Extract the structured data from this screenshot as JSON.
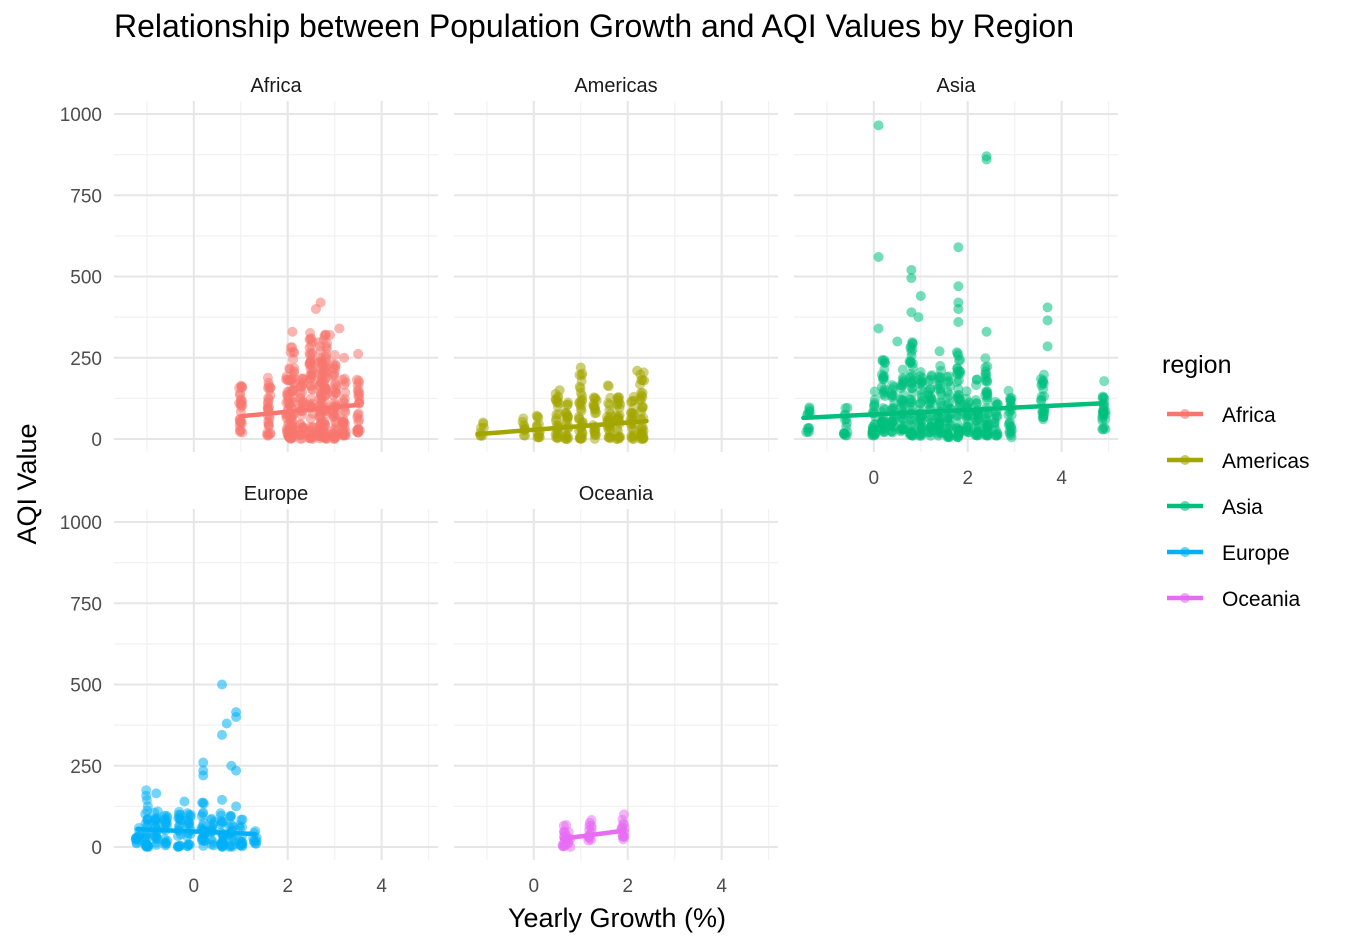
{
  "chart_data": {
    "type": "scatter",
    "title": "Relationship between Population Growth and AQI Values by Region",
    "xlabel": "Yearly Growth (%)",
    "ylabel": "AQI Value",
    "xlim": [
      -1.7,
      5.2
    ],
    "ylim": [
      -40,
      1040
    ],
    "x_ticks": [
      0,
      2,
      4
    ],
    "y_ticks": [
      0,
      250,
      500,
      750,
      1000
    ],
    "grid": true,
    "legend": {
      "title": "region",
      "position": "right"
    },
    "facets": [
      "Africa",
      "Americas",
      "Asia",
      "Europe",
      "Oceania"
    ],
    "series": [
      {
        "name": "Africa",
        "color": "#F8766D",
        "trend": [
          [
            1.0,
            70
          ],
          [
            3.5,
            105
          ]
        ],
        "columns": [
          {
            "x": 1.0,
            "min": 20,
            "max": 180
          },
          {
            "x": 1.6,
            "min": 10,
            "max": 190
          },
          {
            "x": 2.0,
            "min": 5,
            "max": 220
          },
          {
            "x": 2.1,
            "min": 0,
            "max": 285
          },
          {
            "x": 2.3,
            "min": 0,
            "max": 200
          },
          {
            "x": 2.5,
            "min": 0,
            "max": 330
          },
          {
            "x": 2.7,
            "min": 0,
            "max": 300
          },
          {
            "x": 2.8,
            "min": 0,
            "max": 330
          },
          {
            "x": 3.0,
            "min": 0,
            "max": 260
          },
          {
            "x": 3.2,
            "min": 10,
            "max": 200
          },
          {
            "x": 3.5,
            "min": 20,
            "max": 190
          }
        ],
        "outliers": [
          [
            2.7,
            420
          ],
          [
            2.6,
            400
          ],
          [
            3.1,
            340
          ],
          [
            2.1,
            330
          ],
          [
            2.9,
            320
          ],
          [
            2.5,
            310
          ],
          [
            3.5,
            262
          ],
          [
            3.2,
            250
          ]
        ]
      },
      {
        "name": "Americas",
        "color": "#A3A500",
        "trend": [
          [
            -1.2,
            15
          ],
          [
            2.4,
            55
          ]
        ],
        "columns": [
          {
            "x": -1.1,
            "min": 10,
            "max": 55
          },
          {
            "x": -0.2,
            "min": 10,
            "max": 65
          },
          {
            "x": 0.1,
            "min": 5,
            "max": 80
          },
          {
            "x": 0.5,
            "min": 0,
            "max": 150
          },
          {
            "x": 0.7,
            "min": 0,
            "max": 130
          },
          {
            "x": 1.0,
            "min": 0,
            "max": 215
          },
          {
            "x": 1.3,
            "min": 0,
            "max": 130
          },
          {
            "x": 1.6,
            "min": 0,
            "max": 170
          },
          {
            "x": 1.8,
            "min": 0,
            "max": 150
          },
          {
            "x": 2.1,
            "min": 0,
            "max": 140
          },
          {
            "x": 2.3,
            "min": 0,
            "max": 205
          }
        ],
        "outliers": [
          [
            1.0,
            220
          ],
          [
            2.2,
            210
          ],
          [
            2.35,
            180
          ],
          [
            0.55,
            150
          ]
        ]
      },
      {
        "name": "Asia",
        "color": "#00BF7D",
        "trend": [
          [
            -1.5,
            65
          ],
          [
            4.9,
            110
          ]
        ],
        "columns": [
          {
            "x": -1.4,
            "min": 20,
            "max": 100
          },
          {
            "x": -0.6,
            "min": 10,
            "max": 100
          },
          {
            "x": 0.0,
            "min": 10,
            "max": 170
          },
          {
            "x": 0.2,
            "min": 20,
            "max": 250
          },
          {
            "x": 0.4,
            "min": 20,
            "max": 180
          },
          {
            "x": 0.6,
            "min": 20,
            "max": 220
          },
          {
            "x": 0.8,
            "min": 10,
            "max": 300
          },
          {
            "x": 1.0,
            "min": 10,
            "max": 230
          },
          {
            "x": 1.2,
            "min": 10,
            "max": 200
          },
          {
            "x": 1.4,
            "min": 10,
            "max": 230
          },
          {
            "x": 1.6,
            "min": 5,
            "max": 200
          },
          {
            "x": 1.8,
            "min": 5,
            "max": 280
          },
          {
            "x": 2.0,
            "min": 20,
            "max": 150
          },
          {
            "x": 2.2,
            "min": 10,
            "max": 190
          },
          {
            "x": 2.4,
            "min": 10,
            "max": 250
          },
          {
            "x": 2.6,
            "min": 10,
            "max": 120
          },
          {
            "x": 2.9,
            "min": 5,
            "max": 150
          },
          {
            "x": 3.6,
            "min": 60,
            "max": 200
          },
          {
            "x": 4.9,
            "min": 30,
            "max": 180
          }
        ],
        "outliers": [
          [
            0.1,
            965
          ],
          [
            2.4,
            870
          ],
          [
            2.4,
            860
          ],
          [
            1.8,
            590
          ],
          [
            0.1,
            560
          ],
          [
            0.8,
            520
          ],
          [
            0.8,
            495
          ],
          [
            1.8,
            470
          ],
          [
            1.0,
            440
          ],
          [
            1.8,
            420
          ],
          [
            3.7,
            405
          ],
          [
            0.8,
            390
          ],
          [
            1.8,
            400
          ],
          [
            0.95,
            375
          ],
          [
            3.7,
            365
          ],
          [
            1.8,
            360
          ],
          [
            0.1,
            340
          ],
          [
            2.4,
            330
          ],
          [
            0.5,
            300
          ],
          [
            1.4,
            270
          ],
          [
            3.7,
            285
          ]
        ]
      },
      {
        "name": "Europe",
        "color": "#00B0F6",
        "trend": [
          [
            -1.2,
            55
          ],
          [
            1.3,
            40
          ]
        ],
        "columns": [
          {
            "x": -1.2,
            "min": 10,
            "max": 90
          },
          {
            "x": -1.0,
            "min": 0,
            "max": 175
          },
          {
            "x": -0.8,
            "min": 5,
            "max": 120
          },
          {
            "x": -0.6,
            "min": 0,
            "max": 100
          },
          {
            "x": -0.3,
            "min": 0,
            "max": 120
          },
          {
            "x": -0.1,
            "min": 0,
            "max": 110
          },
          {
            "x": 0.2,
            "min": 0,
            "max": 145
          },
          {
            "x": 0.4,
            "min": 5,
            "max": 90
          },
          {
            "x": 0.6,
            "min": 0,
            "max": 140
          },
          {
            "x": 0.8,
            "min": 0,
            "max": 100
          },
          {
            "x": 1.0,
            "min": 0,
            "max": 90
          },
          {
            "x": 1.3,
            "min": 10,
            "max": 65
          }
        ],
        "outliers": [
          [
            0.6,
            500
          ],
          [
            0.9,
            415
          ],
          [
            0.9,
            400
          ],
          [
            0.7,
            380
          ],
          [
            0.6,
            345
          ],
          [
            0.2,
            260
          ],
          [
            0.2,
            235
          ],
          [
            0.2,
            220
          ],
          [
            0.8,
            250
          ],
          [
            0.9,
            235
          ],
          [
            -0.2,
            140
          ],
          [
            -0.8,
            165
          ],
          [
            0.6,
            145
          ],
          [
            0.9,
            125
          ]
        ]
      },
      {
        "name": "Oceania",
        "color": "#E76BF3",
        "trend": [
          [
            0.6,
            25
          ],
          [
            1.9,
            50
          ]
        ],
        "columns": [
          {
            "x": 0.65,
            "min": 0,
            "max": 75
          },
          {
            "x": 0.75,
            "min": 0,
            "max": 50
          },
          {
            "x": 1.2,
            "min": 10,
            "max": 95
          },
          {
            "x": 1.9,
            "min": 20,
            "max": 110
          }
        ],
        "outliers": []
      }
    ]
  }
}
